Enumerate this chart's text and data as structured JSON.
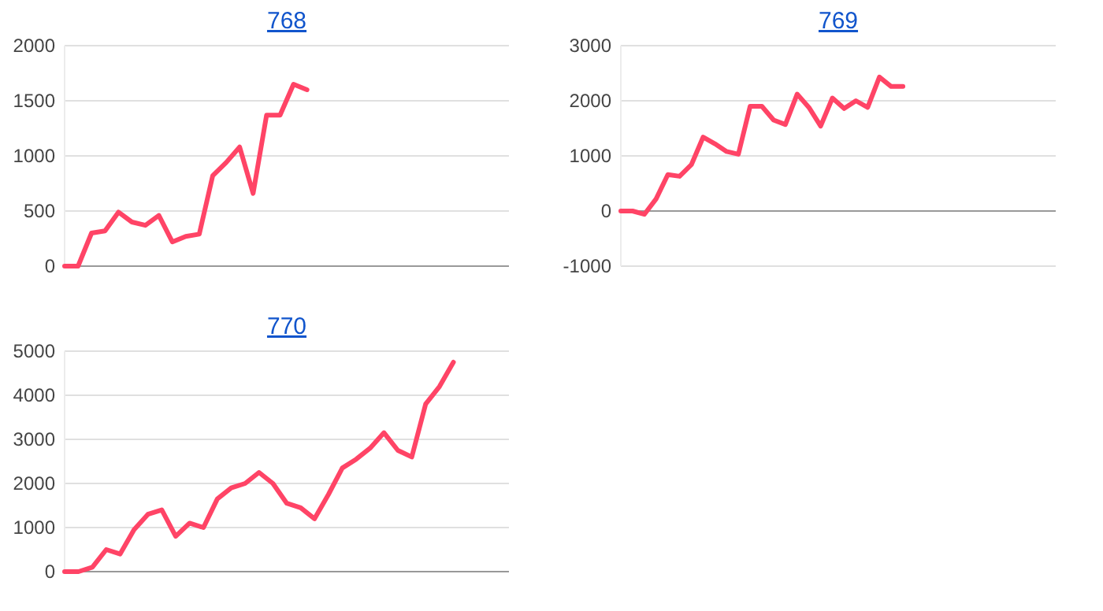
{
  "chart_data": [
    {
      "type": "line",
      "title": "768",
      "categories": [
        null,
        null,
        null,
        null,
        null,
        null,
        null,
        null,
        null,
        null,
        null,
        null,
        null,
        null,
        null,
        null,
        null,
        null,
        null,
        null,
        null,
        null,
        null,
        null,
        null,
        null,
        null,
        null,
        null,
        null,
        null,
        null,
        null,
        null
      ],
      "series": [
        {
          "color": "#ff4466",
          "values": [
            0,
            0,
            300,
            320,
            490,
            400,
            370,
            460,
            220,
            270,
            290,
            820,
            940,
            1080,
            660,
            1370,
            1370,
            1650,
            1600,
            null,
            null,
            null,
            null,
            null,
            null,
            null,
            null,
            null,
            null,
            null,
            null,
            null,
            null,
            null
          ]
        }
      ],
      "ylim": [
        0,
        2000
      ],
      "yticks": [
        0,
        500,
        1000,
        1500,
        2000
      ],
      "grid": "y",
      "tick_labels": "y"
    },
    {
      "type": "line",
      "title": "769",
      "categories": [
        null,
        null,
        null,
        null,
        null,
        null,
        null,
        null,
        null,
        null,
        null,
        null,
        null,
        null,
        null,
        null,
        null,
        null,
        null,
        null,
        null,
        null,
        null,
        null,
        null,
        null,
        null,
        null,
        null,
        null,
        null,
        null,
        null,
        null,
        null,
        null,
        null,
        null
      ],
      "series": [
        {
          "color": "#ff4466",
          "values": [
            0,
            0,
            -60,
            220,
            660,
            630,
            840,
            1340,
            1220,
            1080,
            1030,
            1900,
            1900,
            1650,
            1570,
            2120,
            1880,
            1540,
            2050,
            1860,
            2000,
            1880,
            2430,
            2260,
            2260,
            null,
            null,
            null,
            null,
            null,
            null,
            null,
            null,
            null,
            null,
            null,
            null,
            null
          ]
        }
      ],
      "ylim": [
        -1000,
        3000
      ],
      "yticks": [
        -1000,
        0,
        1000,
        2000,
        3000
      ],
      "grid": "y",
      "tick_labels": "y"
    },
    {
      "type": "line",
      "title": "770",
      "categories": [
        null,
        null,
        null,
        null,
        null,
        null,
        null,
        null,
        null,
        null,
        null,
        null,
        null,
        null,
        null,
        null,
        null,
        null,
        null,
        null,
        null,
        null,
        null,
        null,
        null,
        null,
        null,
        null,
        null,
        null,
        null,
        null,
        null
      ],
      "series": [
        {
          "color": "#ff4466",
          "values": [
            0,
            0,
            100,
            500,
            400,
            950,
            1300,
            1400,
            800,
            1100,
            1000,
            1650,
            1900,
            2000,
            2250,
            2000,
            1550,
            1450,
            1200,
            1750,
            2350,
            2550,
            2800,
            3150,
            2750,
            2600,
            3800,
            4200,
            4750,
            null,
            null,
            null,
            null
          ]
        }
      ],
      "ylim": [
        0,
        5000
      ],
      "yticks": [
        0,
        1000,
        2000,
        3000,
        4000,
        5000
      ],
      "grid": "y",
      "tick_labels": "y"
    }
  ]
}
